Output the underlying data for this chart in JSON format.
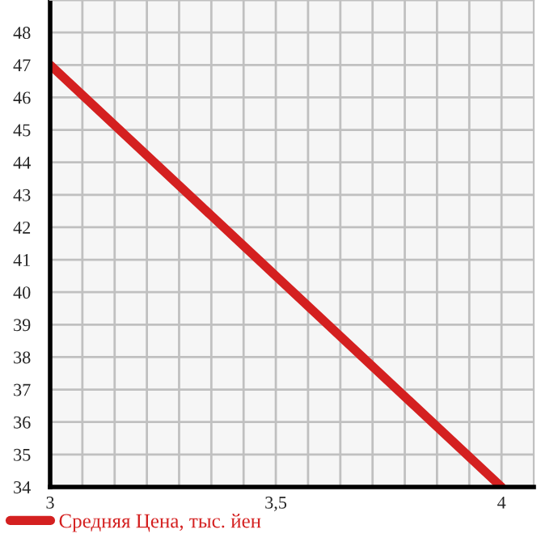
{
  "chart_data": {
    "type": "line",
    "x": [
      3,
      4
    ],
    "series": [
      {
        "name": "Средняя Цена, тыс. йен",
        "color": "#d42020",
        "values": [
          47,
          34
        ]
      }
    ],
    "xlim": [
      3,
      4.0714
    ],
    "xticks": [
      3,
      {
        "value": 3.0714,
        "label": null
      },
      {
        "value": 3.1429,
        "label": null
      },
      {
        "value": 3.2143,
        "label": null
      },
      {
        "value": 3.2857,
        "label": null
      },
      {
        "value": 3.3571,
        "label": null
      },
      {
        "value": 3.4286,
        "label": null
      },
      {
        "value": 3.5,
        "label": "3,5"
      },
      {
        "value": 3.5714,
        "label": null
      },
      {
        "value": 3.6429,
        "label": null
      },
      {
        "value": 3.7143,
        "label": null
      },
      {
        "value": 3.7857,
        "label": null
      },
      {
        "value": 3.8571,
        "label": null
      },
      {
        "value": 3.9286,
        "label": null
      },
      4
    ],
    "ylim": [
      34,
      49
    ],
    "yticks": [
      34,
      35,
      36,
      37,
      38,
      39,
      40,
      41,
      42,
      43,
      44,
      45,
      46,
      47,
      48,
      {
        "value": 49,
        "label": null
      }
    ],
    "grid": true,
    "legend": "bottom left",
    "marker": "none",
    "line_style": "solid"
  }
}
